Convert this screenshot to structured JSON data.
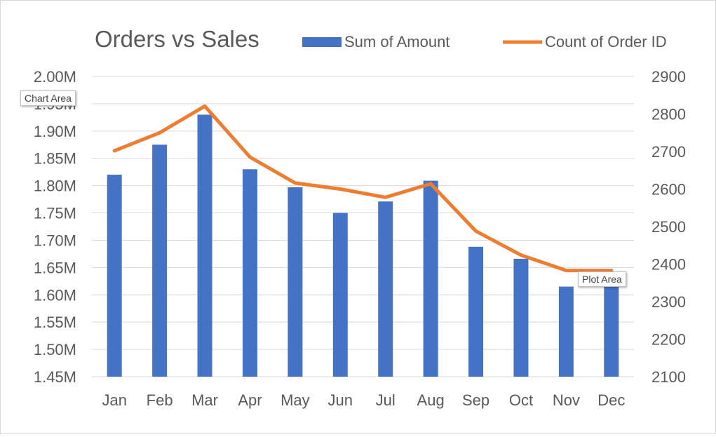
{
  "colors": {
    "bar": "#4472C4",
    "line": "#ED7D31",
    "grid": "#d9d9d9",
    "text": "#595959"
  },
  "tooltips": {
    "chart_area": "Chart Area",
    "plot_area": "Plot Area"
  },
  "chart_data": {
    "type": "bar",
    "title": "Orders vs Sales",
    "categories": [
      "Jan",
      "Feb",
      "Mar",
      "Apr",
      "May",
      "Jun",
      "Jul",
      "Aug",
      "Sep",
      "Oct",
      "Nov",
      "Dec"
    ],
    "series": [
      {
        "name": "Sum of Amount",
        "type": "bar",
        "axis": "left",
        "values": [
          1.82,
          1.875,
          1.93,
          1.83,
          1.797,
          1.75,
          1.771,
          1.809,
          1.688,
          1.666,
          1.615,
          1.615
        ]
      },
      {
        "name": "Count of Order ID",
        "type": "line",
        "axis": "right",
        "values": [
          2702,
          2750,
          2821,
          2685,
          2616,
          2600,
          2578,
          2614,
          2488,
          2424,
          2383,
          2383
        ]
      }
    ],
    "y_left": {
      "min": 1.45,
      "max": 2.0,
      "step": 0.05,
      "tick_labels": [
        "1.45M",
        "1.50M",
        "1.55M",
        "1.60M",
        "1.65M",
        "1.70M",
        "1.75M",
        "1.80M",
        "1.85M",
        "1.90M",
        "1.95M",
        "2.00M"
      ]
    },
    "y_right": {
      "min": 2100,
      "max": 2900,
      "step": 100,
      "tick_labels": [
        "2100",
        "2200",
        "2300",
        "2400",
        "2500",
        "2600",
        "2700",
        "2800",
        "2900"
      ]
    },
    "legend_position": "top-right",
    "grid": true
  }
}
